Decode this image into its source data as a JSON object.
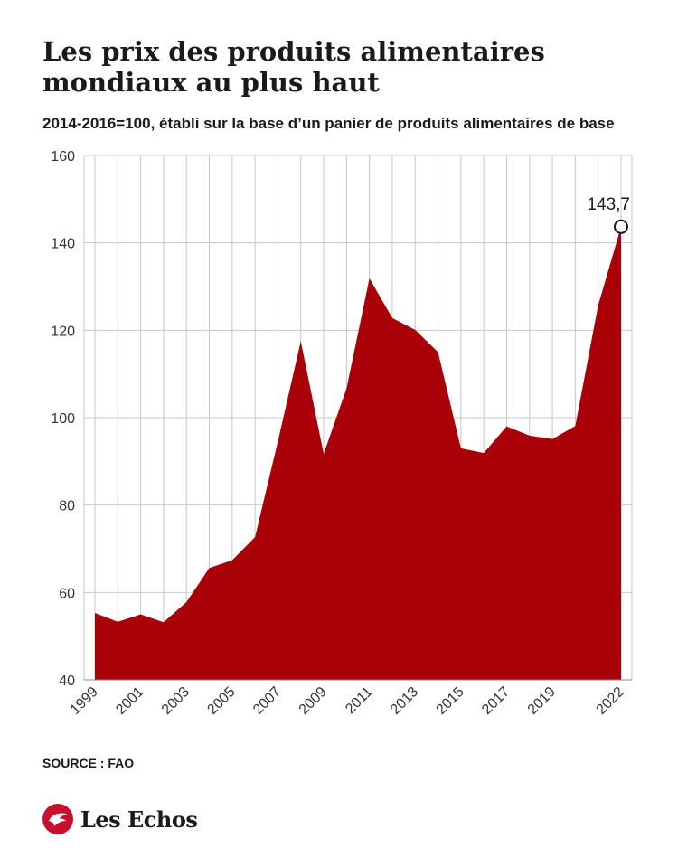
{
  "header": {
    "title": "Les prix des produits alimentaires mondiaux au plus haut",
    "subtitle": "2014-2016=100, établi sur la base d’un panier de produits alimentaires de base"
  },
  "footer": {
    "source": "SOURCE : FAO",
    "brand": "Les Echos"
  },
  "colors": {
    "area": "#aa0008",
    "grid": "#c8c8c8",
    "logo": "#c8102e"
  },
  "chart_data": {
    "type": "area",
    "title": "Les prix des produits alimentaires mondiaux au plus haut",
    "subtitle": "2014-2016=100, établi sur la base d’un panier de produits alimentaires de base",
    "xlabel": "",
    "ylabel": "",
    "x": [
      1999,
      2000,
      2001,
      2002,
      2003,
      2004,
      2005,
      2006,
      2007,
      2008,
      2009,
      2010,
      2011,
      2012,
      2013,
      2014,
      2015,
      2016,
      2017,
      2018,
      2019,
      2020,
      2021,
      2022
    ],
    "series": [
      {
        "values": [
          55.3,
          53.3,
          55.0,
          53.2,
          57.8,
          65.6,
          67.4,
          72.7,
          94.6,
          117.5,
          91.7,
          106.7,
          131.9,
          122.8,
          120.1,
          115.0,
          93.0,
          91.9,
          98.0,
          95.9,
          95.1,
          98.1,
          125.7,
          143.7
        ]
      }
    ],
    "xticks": [
      "1999",
      "2001",
      "2003",
      "2005",
      "2007",
      "2009",
      "2011",
      "2013",
      "2015",
      "2017",
      "2019",
      "2022"
    ],
    "yticks": [
      "40",
      "60",
      "80",
      "100",
      "120",
      "140",
      "160"
    ],
    "ylim": [
      40,
      160
    ],
    "xlim": [
      1999,
      2022
    ],
    "grid": true,
    "annotation": {
      "x": 2022,
      "y": 143.7,
      "label": "143,7"
    }
  }
}
